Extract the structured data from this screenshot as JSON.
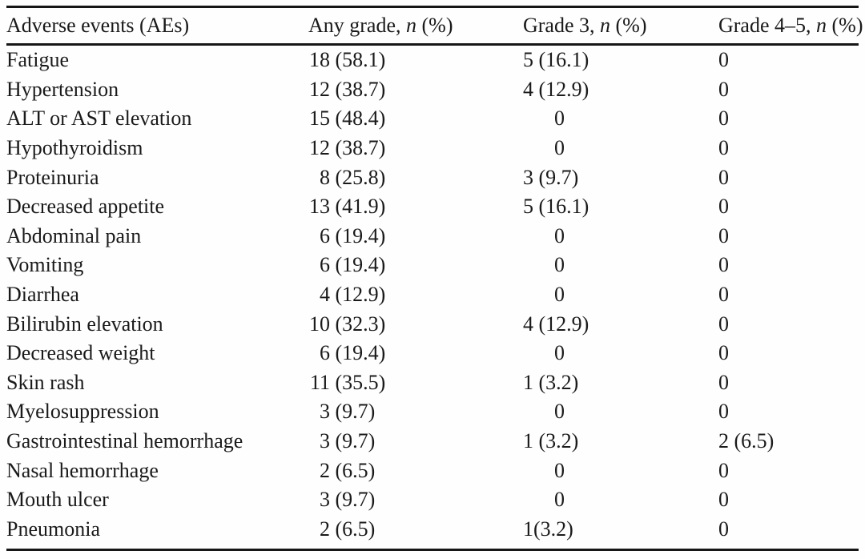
{
  "table": {
    "columns": [
      {
        "id": "event",
        "label": {
          "pre": "Adverse events (AEs)",
          "italic": "",
          "post": ""
        }
      },
      {
        "id": "any_grade",
        "label": {
          "pre": "Any grade, ",
          "italic": "n",
          "post": " (%)"
        }
      },
      {
        "id": "grade3",
        "label": {
          "pre": "Grade 3, ",
          "italic": "n",
          "post": " (%)"
        }
      },
      {
        "id": "grade45",
        "label": {
          "pre": "Grade 4–5, ",
          "italic": "n",
          "post": " (%)"
        }
      }
    ],
    "rows": [
      {
        "event": "Fatigue",
        "any_grade": "18 (58.1)",
        "grade3": "5 (16.1)",
        "grade45": "0"
      },
      {
        "event": "Hypertension",
        "any_grade": "12 (38.7)",
        "grade3": "4 (12.9)",
        "grade45": "0"
      },
      {
        "event": "ALT or AST elevation",
        "any_grade": "15 (48.4)",
        "grade3": "0",
        "grade45": "0"
      },
      {
        "event": "Hypothyroidism",
        "any_grade": "12 (38.7)",
        "grade3": "0",
        "grade45": "0"
      },
      {
        "event": "Proteinuria",
        "any_grade": "8 (25.8)",
        "grade3": "3 (9.7)",
        "grade45": "0"
      },
      {
        "event": "Decreased appetite",
        "any_grade": "13 (41.9)",
        "grade3": "5 (16.1)",
        "grade45": "0"
      },
      {
        "event": "Abdominal pain",
        "any_grade": "6 (19.4)",
        "grade3": "0",
        "grade45": "0"
      },
      {
        "event": "Vomiting",
        "any_grade": "6 (19.4)",
        "grade3": "0",
        "grade45": "0"
      },
      {
        "event": "Diarrhea",
        "any_grade": "4 (12.9)",
        "grade3": "0",
        "grade45": "0"
      },
      {
        "event": "Bilirubin elevation",
        "any_grade": "10 (32.3)",
        "grade3": "4 (12.9)",
        "grade45": "0"
      },
      {
        "event": "Decreased weight",
        "any_grade": "6 (19.4)",
        "grade3": "0",
        "grade45": "0"
      },
      {
        "event": "Skin rash",
        "any_grade": "11 (35.5)",
        "grade3": "1 (3.2)",
        "grade45": "0"
      },
      {
        "event": "Myelosuppression",
        "any_grade": "3 (9.7)",
        "grade3": "0",
        "grade45": "0"
      },
      {
        "event": "Gastrointestinal hemorrhage",
        "any_grade": "3 (9.7)",
        "grade3": "1 (3.2)",
        "grade45": "2 (6.5)"
      },
      {
        "event": "Nasal hemorrhage",
        "any_grade": "2 (6.5)",
        "grade3": "0",
        "grade45": "0"
      },
      {
        "event": "Mouth ulcer",
        "any_grade": "3 (9.7)",
        "grade3": "0",
        "grade45": "0"
      },
      {
        "event": "Pneumonia",
        "any_grade": "2 (6.5)",
        "grade3": "1(3.2)",
        "grade45": "0"
      }
    ],
    "colors": {
      "rule": "#161616",
      "text": "#1a1a1a",
      "background": "#fefefe"
    }
  }
}
